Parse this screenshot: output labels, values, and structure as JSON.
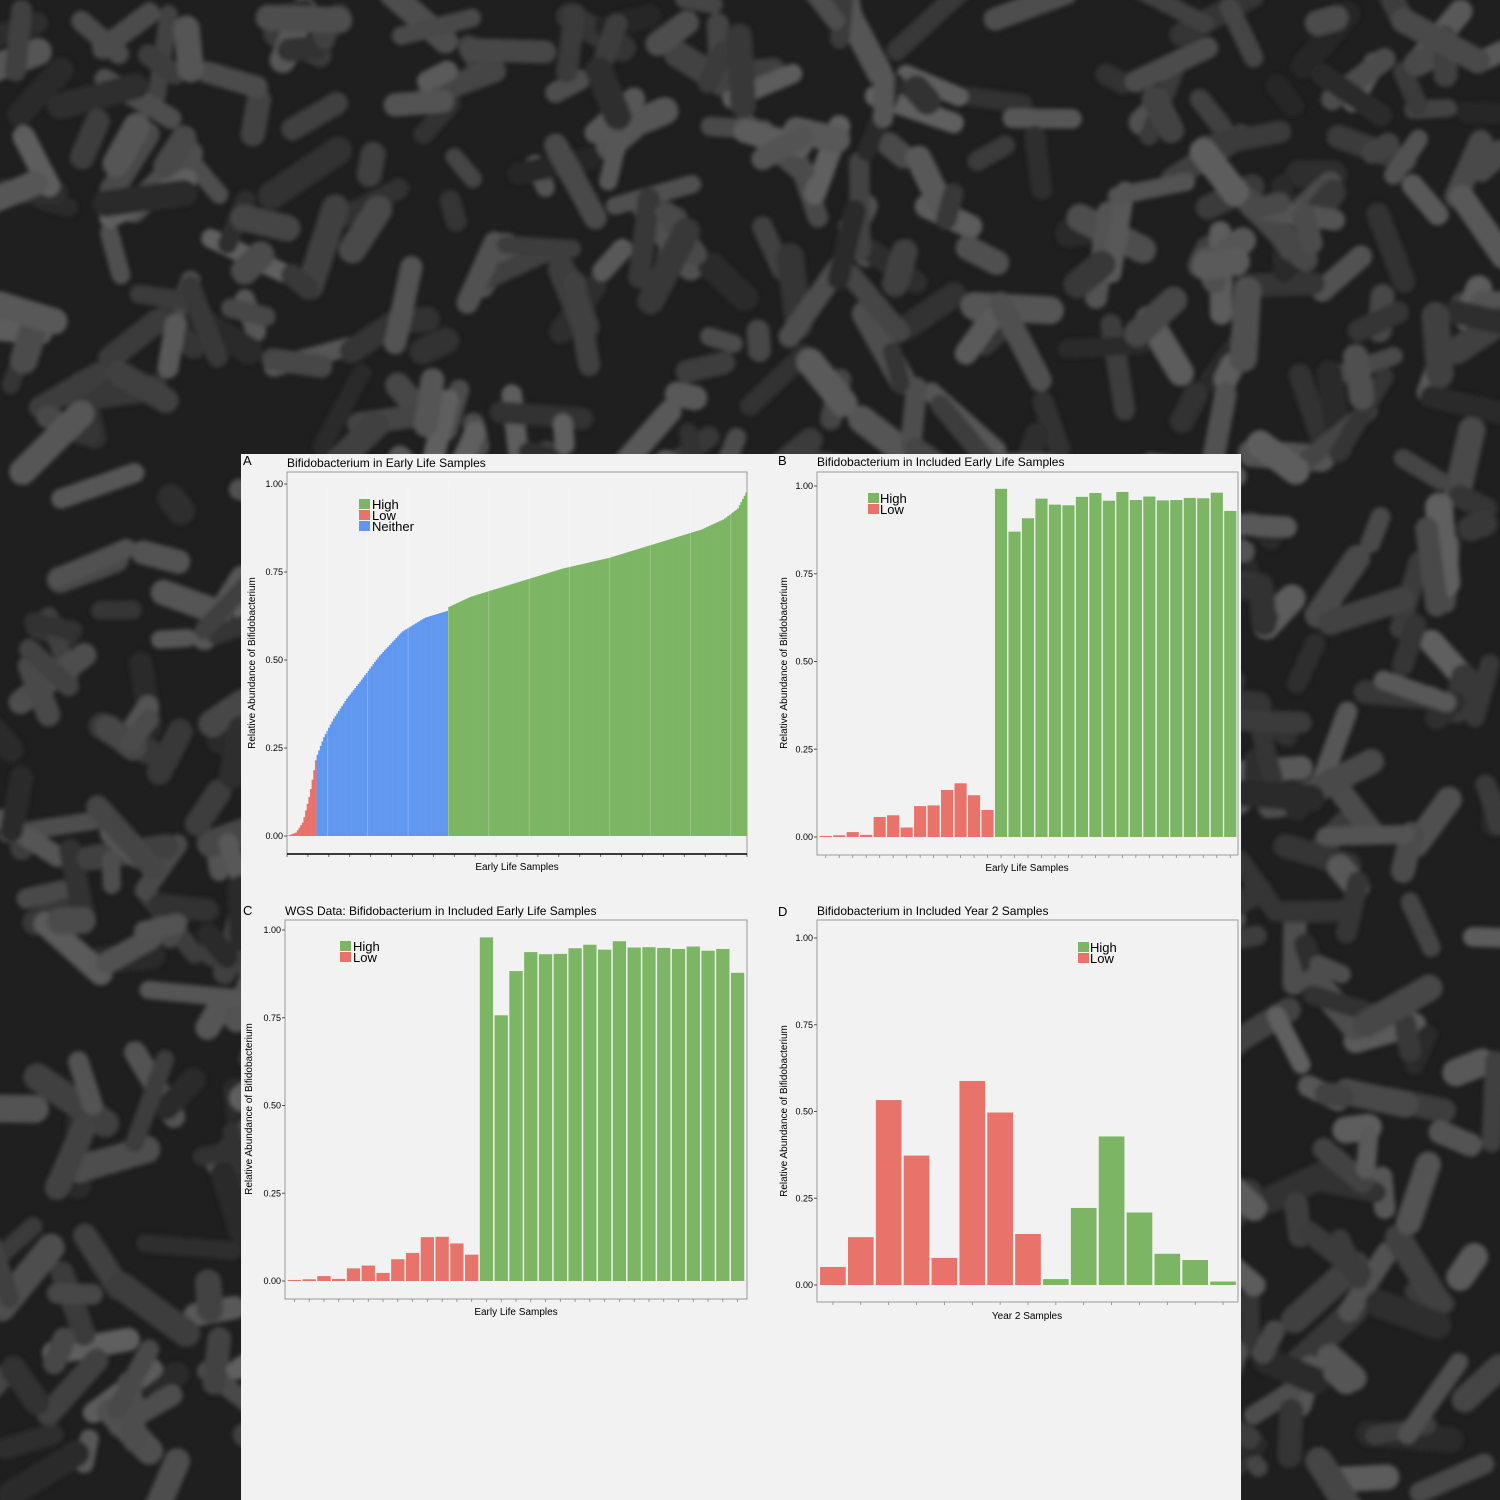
{
  "colors": {
    "high": "#7cb564",
    "low": "#e8736b",
    "neither": "#6198ef",
    "panel_background": "#f2f2f2",
    "page_background": "#262626"
  },
  "background_image": "scanning electron micrograph of rod-shaped bacteria",
  "chart_data": [
    {
      "panel_letter": "A",
      "type": "bar",
      "title": "Bifidobacterium in Early Life Samples",
      "xlabel": "Early Life Samples",
      "ylabel": "Relative Abundance of Bifidobacterium",
      "ylim": [
        0,
        1
      ],
      "yticks": [
        "0.00",
        "0.25",
        "0.50",
        "0.75",
        "1.00"
      ],
      "grid": false,
      "legend": {
        "position": "top-left",
        "entries": [
          "High",
          "Low",
          "Neither"
        ]
      },
      "sorted_profile": {
        "description": "many sorted samples rendered as a continuous stepped area",
        "points": [
          [
            0.0,
            0.0,
            "low"
          ],
          [
            0.02,
            0.01,
            "low"
          ],
          [
            0.035,
            0.04,
            "low"
          ],
          [
            0.05,
            0.12,
            "low"
          ],
          [
            0.062,
            0.21,
            "low"
          ],
          [
            0.063,
            0.22,
            "neither"
          ],
          [
            0.08,
            0.28,
            "neither"
          ],
          [
            0.1,
            0.33,
            "neither"
          ],
          [
            0.13,
            0.39,
            "neither"
          ],
          [
            0.16,
            0.44,
            "neither"
          ],
          [
            0.2,
            0.51,
            "neither"
          ],
          [
            0.25,
            0.58,
            "neither"
          ],
          [
            0.3,
            0.62,
            "neither"
          ],
          [
            0.35,
            0.64,
            "neither"
          ],
          [
            0.351,
            0.65,
            "high"
          ],
          [
            0.4,
            0.68,
            "high"
          ],
          [
            0.5,
            0.72,
            "high"
          ],
          [
            0.6,
            0.76,
            "high"
          ],
          [
            0.7,
            0.79,
            "high"
          ],
          [
            0.8,
            0.83,
            "high"
          ],
          [
            0.9,
            0.87,
            "high"
          ],
          [
            0.95,
            0.9,
            "high"
          ],
          [
            0.98,
            0.93,
            "high"
          ],
          [
            1.0,
            0.98,
            "high"
          ]
        ]
      }
    },
    {
      "panel_letter": "B",
      "type": "bar",
      "title": "Bifidobacterium in Included Early Life Samples",
      "xlabel": "Early Life Samples",
      "ylabel": "Relative Abundance of Bifidobacterium",
      "ylim": [
        0,
        1
      ],
      "yticks": [
        "0.00",
        "0.25",
        "0.50",
        "0.75",
        "1.00"
      ],
      "grid": false,
      "legend": {
        "position": "top-left",
        "entries": [
          "High",
          "Low"
        ]
      },
      "series": [
        {
          "name": "Low",
          "values": [
            0.003,
            0.005,
            0.014,
            0.006,
            0.057,
            0.062,
            0.027,
            0.088,
            0.09,
            0.134,
            0.153,
            0.119,
            0.077
          ]
        },
        {
          "name": "High",
          "values": [
            0.992,
            0.87,
            0.908,
            0.964,
            0.947,
            0.945,
            0.969,
            0.98,
            0.958,
            0.983,
            0.96,
            0.97,
            0.959,
            0.96,
            0.966,
            0.965,
            0.981,
            0.929
          ]
        }
      ]
    },
    {
      "panel_letter": "C",
      "type": "bar",
      "title": "WGS Data: Bifidobacterium in Included Early Life Samples",
      "xlabel": "Early Life Samples",
      "ylabel": "Relative Abundance of Bifidobacterium",
      "ylim": [
        0,
        1
      ],
      "yticks": [
        "0.00",
        "0.25",
        "0.50",
        "0.75",
        "1.00"
      ],
      "grid": false,
      "legend": {
        "position": "top-left",
        "entries": [
          "High",
          "Low"
        ]
      },
      "series": [
        {
          "name": "Low",
          "values": [
            0.003,
            0.005,
            0.014,
            0.006,
            0.036,
            0.044,
            0.023,
            0.062,
            0.08,
            0.125,
            0.126,
            0.107,
            0.075
          ]
        },
        {
          "name": "High",
          "values": [
            0.979,
            0.757,
            0.883,
            0.937,
            0.931,
            0.932,
            0.948,
            0.958,
            0.944,
            0.968,
            0.95,
            0.951,
            0.949,
            0.946,
            0.953,
            0.941,
            0.946,
            0.878
          ]
        }
      ]
    },
    {
      "panel_letter": "D",
      "type": "bar",
      "title": "Bifidobacterium in Included Year 2 Samples",
      "xlabel": "Year 2 Samples",
      "ylabel": "Relative Abundance of Bifidobacterium",
      "ylim": [
        0,
        1
      ],
      "yticks": [
        "0.00",
        "0.25",
        "0.50",
        "0.75",
        "1.00"
      ],
      "grid": false,
      "legend": {
        "position": "top-right",
        "entries": [
          "High",
          "Low"
        ]
      },
      "bars": [
        {
          "value": 0.052,
          "group": "Low"
        },
        {
          "value": 0.138,
          "group": "Low"
        },
        {
          "value": 0.533,
          "group": "Low"
        },
        {
          "value": 0.373,
          "group": "Low"
        },
        {
          "value": 0.078,
          "group": "Low"
        },
        {
          "value": 0.588,
          "group": "Low"
        },
        {
          "value": 0.497,
          "group": "Low"
        },
        {
          "value": 0.147,
          "group": "Low"
        },
        {
          "value": 0.017,
          "group": "High"
        },
        {
          "value": 0.222,
          "group": "High"
        },
        {
          "value": 0.428,
          "group": "High"
        },
        {
          "value": 0.209,
          "group": "High"
        },
        {
          "value": 0.09,
          "group": "High"
        },
        {
          "value": 0.072,
          "group": "High"
        },
        {
          "value": 0.01,
          "group": "High"
        }
      ]
    }
  ]
}
